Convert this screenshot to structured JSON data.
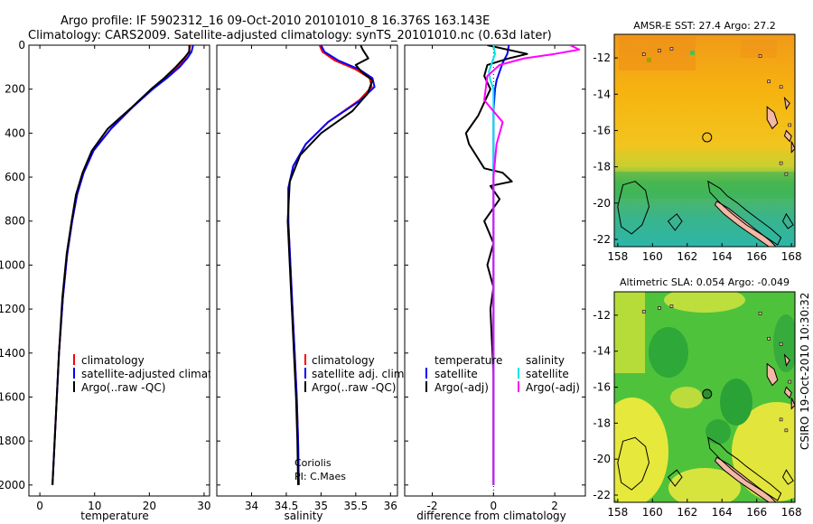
{
  "header": {
    "line1": "Argo profile: IF 5902312_16 09-Oct-2010 20101010_8 16.376S 163.143E",
    "line2": "Climatology: CARS2009. Satellite-adjusted climatology: synTS_20101010.nc (0.63d later)"
  },
  "side_label": "CSIRO 19-Oct-2010 10:30:32",
  "colors": {
    "climatology": "#ff0000",
    "satellite": "#0000ff",
    "argo": "#000000",
    "argo_adj_salinity": "#ff00ff",
    "satellite_salinity": "#00e5e5",
    "land": "#f4b8a4"
  },
  "chart_data": [
    {
      "type": "line",
      "panel": "temperature",
      "xlabel": "temperature",
      "xlim": [
        -2,
        31
      ],
      "ylim": [
        2050,
        0
      ],
      "xticks": [
        "0",
        "10",
        "20",
        "30"
      ],
      "xtick_values": [
        0,
        10,
        20,
        30
      ],
      "yticks": [
        "0",
        "200",
        "400",
        "600",
        "800",
        "1000",
        "1200",
        "1400",
        "1600",
        "1800",
        "2000"
      ],
      "ytick_values": [
        0,
        200,
        400,
        600,
        800,
        1000,
        1200,
        1400,
        1600,
        1800,
        2000
      ],
      "legend": [
        "climatology",
        "satellite-adjusted climatology",
        "Argo(..raw -QC)"
      ],
      "series": [
        {
          "name": "climatology",
          "color": "#ff0000",
          "x": [
            27.5,
            27.2,
            26.5,
            25.2,
            23.0,
            20.5,
            17.0,
            13.0,
            9.8,
            8.0,
            6.8,
            5.9,
            5.0,
            4.2,
            3.5,
            3.0,
            2.6,
            2.3
          ],
          "y": [
            0,
            30,
            60,
            100,
            150,
            200,
            280,
            380,
            480,
            580,
            680,
            800,
            950,
            1150,
            1400,
            1650,
            1850,
            2000
          ]
        },
        {
          "name": "satellite-adjusted climatology",
          "color": "#0000ff",
          "x": [
            28.0,
            27.7,
            26.9,
            25.5,
            23.2,
            20.6,
            17.0,
            13.0,
            9.8,
            8.0,
            6.8,
            5.9,
            5.0,
            4.2,
            3.5,
            3.0,
            2.6,
            2.3
          ],
          "y": [
            0,
            30,
            60,
            100,
            150,
            200,
            280,
            380,
            480,
            580,
            680,
            800,
            950,
            1150,
            1400,
            1650,
            1850,
            2000
          ]
        },
        {
          "name": "Argo(..raw -QC)",
          "color": "#000000",
          "x": [
            27.3,
            27.3,
            26.3,
            24.8,
            22.7,
            20.3,
            16.9,
            12.4,
            9.5,
            7.8,
            6.6,
            5.8,
            4.9,
            4.1,
            3.5,
            3.0,
            2.6,
            2.3
          ],
          "y": [
            0,
            30,
            60,
            100,
            150,
            200,
            280,
            380,
            480,
            580,
            680,
            800,
            950,
            1150,
            1400,
            1650,
            1850,
            2000
          ]
        }
      ]
    },
    {
      "type": "line",
      "panel": "salinity",
      "xlabel": "salinity",
      "xlim": [
        33.5,
        36.1
      ],
      "ylim": [
        2050,
        0
      ],
      "xticks": [
        "34",
        "34.5",
        "35",
        "35.5",
        "36"
      ],
      "xtick_values": [
        34,
        34.5,
        35,
        35.5,
        36
      ],
      "legend": [
        "climatology",
        "satellite adj. clim.",
        "Argo(..raw -QC)"
      ],
      "annotation": [
        "Coriolis",
        "PI: C.Maes"
      ],
      "series": [
        {
          "name": "climatology",
          "color": "#ff0000",
          "x": [
            34.98,
            35.02,
            35.2,
            35.5,
            35.7,
            35.73,
            35.55,
            35.1,
            34.78,
            34.6,
            34.53,
            34.53,
            34.56,
            34.59,
            34.62,
            34.65,
            34.67,
            34.68
          ],
          "y": [
            0,
            30,
            70,
            110,
            150,
            190,
            250,
            350,
            450,
            550,
            650,
            800,
            1000,
            1200,
            1400,
            1600,
            1800,
            2000
          ]
        },
        {
          "name": "satellite adj. clim.",
          "color": "#0000ff",
          "x": [
            35.0,
            35.05,
            35.25,
            35.55,
            35.74,
            35.77,
            35.57,
            35.1,
            34.78,
            34.6,
            34.53,
            34.53,
            34.56,
            34.59,
            34.62,
            34.65,
            34.67,
            34.68
          ],
          "y": [
            0,
            30,
            70,
            110,
            150,
            190,
            250,
            350,
            450,
            550,
            650,
            800,
            1000,
            1200,
            1400,
            1600,
            1800,
            2000
          ]
        },
        {
          "name": "Argo(..raw -QC)",
          "color": "#000000",
          "x": [
            35.57,
            35.6,
            35.68,
            35.5,
            35.58,
            35.74,
            35.67,
            35.45,
            35.0,
            34.7,
            34.55,
            34.52,
            34.55,
            34.58,
            34.61,
            34.64,
            34.66,
            34.67
          ],
          "y": [
            0,
            20,
            60,
            90,
            120,
            160,
            220,
            300,
            400,
            500,
            620,
            800,
            1000,
            1200,
            1400,
            1600,
            1800,
            2000
          ]
        }
      ]
    },
    {
      "type": "line",
      "panel": "difference",
      "xlabel": "difference from climatology",
      "xlim": [
        -2.9,
        3.0
      ],
      "ylim": [
        2050,
        0
      ],
      "xticks": [
        "-2",
        "0",
        "2"
      ],
      "xtick_values": [
        -2,
        0,
        2
      ],
      "legend_columns": [
        "temperature",
        "salinity"
      ],
      "legend": [
        "satellite",
        "Argo(-adj)",
        "satellite",
        "Argo(-adj)"
      ],
      "series": [
        {
          "name": "satellite",
          "color": "#0000ff",
          "x": [
            0.5,
            0.45,
            0.3,
            0.2,
            0.1,
            0.05,
            0.0,
            0.0,
            0.0,
            0.0
          ],
          "y": [
            0,
            40,
            80,
            120,
            160,
            200,
            300,
            500,
            1000,
            2000
          ]
        },
        {
          "name": "Argo(-adj)",
          "color": "#000000",
          "x": [
            -0.2,
            1.1,
            0.5,
            -0.2,
            -0.3,
            -0.1,
            -0.5,
            -0.8,
            -0.9,
            -0.8,
            -0.3,
            0.3,
            0.6,
            -0.1,
            0.2,
            -0.3,
            0.0,
            -0.2,
            0.0,
            -0.1,
            0.0,
            0.0
          ],
          "y": [
            0,
            40,
            60,
            90,
            140,
            200,
            320,
            380,
            400,
            450,
            560,
            580,
            620,
            640,
            700,
            800,
            900,
            1000,
            1100,
            1200,
            1500,
            2000
          ]
        },
        {
          "name": "satellite",
          "color": "#00e5e5",
          "x": [
            0.0,
            0.05,
            -0.05,
            -0.15,
            -0.1,
            0.0,
            0.0,
            0.0,
            0.0
          ],
          "y": [
            0,
            40,
            80,
            120,
            160,
            200,
            400,
            1000,
            2000
          ]
        },
        {
          "name": "Argo(-adj)",
          "color": "#ff00ff",
          "x": [
            2.5,
            2.8,
            2.0,
            1.0,
            0.2,
            -0.2,
            -0.3,
            0.3,
            0.1,
            0.0,
            0.0,
            0.0,
            0.0
          ],
          "y": [
            0,
            20,
            40,
            60,
            90,
            140,
            250,
            350,
            450,
            600,
            800,
            1000,
            2000
          ]
        }
      ]
    },
    {
      "type": "heatmap",
      "panel": "sst-map",
      "title": "AMSR-E SST: 27.4 Argo: 27.2",
      "xlim": [
        157.8,
        168.2
      ],
      "ylim": [
        -22.4,
        -10.7
      ],
      "xticks": [
        "158",
        "160",
        "162",
        "164",
        "166",
        "168"
      ],
      "xtick_values": [
        158,
        160,
        162,
        164,
        166,
        168
      ],
      "yticks": [
        "-12",
        "-14",
        "-16",
        "-18",
        "-20",
        "-22"
      ],
      "ytick_values": [
        -12,
        -14,
        -16,
        -18,
        -20,
        -22
      ],
      "argo_position": {
        "lon": 163.143,
        "lat": -16.376
      },
      "field_stops": [
        [
          -11,
          "#f09a18"
        ],
        [
          -14,
          "#f7b410"
        ],
        [
          -16.8,
          "#f0c820"
        ],
        [
          -18,
          "#b4d23c"
        ],
        [
          -19.5,
          "#46b446"
        ],
        [
          -22.4,
          "#2fb9a0"
        ]
      ]
    },
    {
      "type": "heatmap",
      "panel": "sla-map",
      "title": "Altimetric SLA: 0.054 Argo: -0.049",
      "xlim": [
        157.8,
        168.2
      ],
      "ylim": [
        -22.4,
        -10.7
      ],
      "xticks": [
        "158",
        "160",
        "162",
        "164",
        "166",
        "168"
      ],
      "xtick_values": [
        158,
        160,
        162,
        164,
        166,
        168
      ],
      "yticks": [
        "-12",
        "-14",
        "-16",
        "-18",
        "-20",
        "-22"
      ],
      "ytick_values": [
        -12,
        -14,
        -16,
        -18,
        -20,
        -22
      ],
      "argo_position": {
        "lon": 163.143,
        "lat": -16.376
      }
    }
  ]
}
